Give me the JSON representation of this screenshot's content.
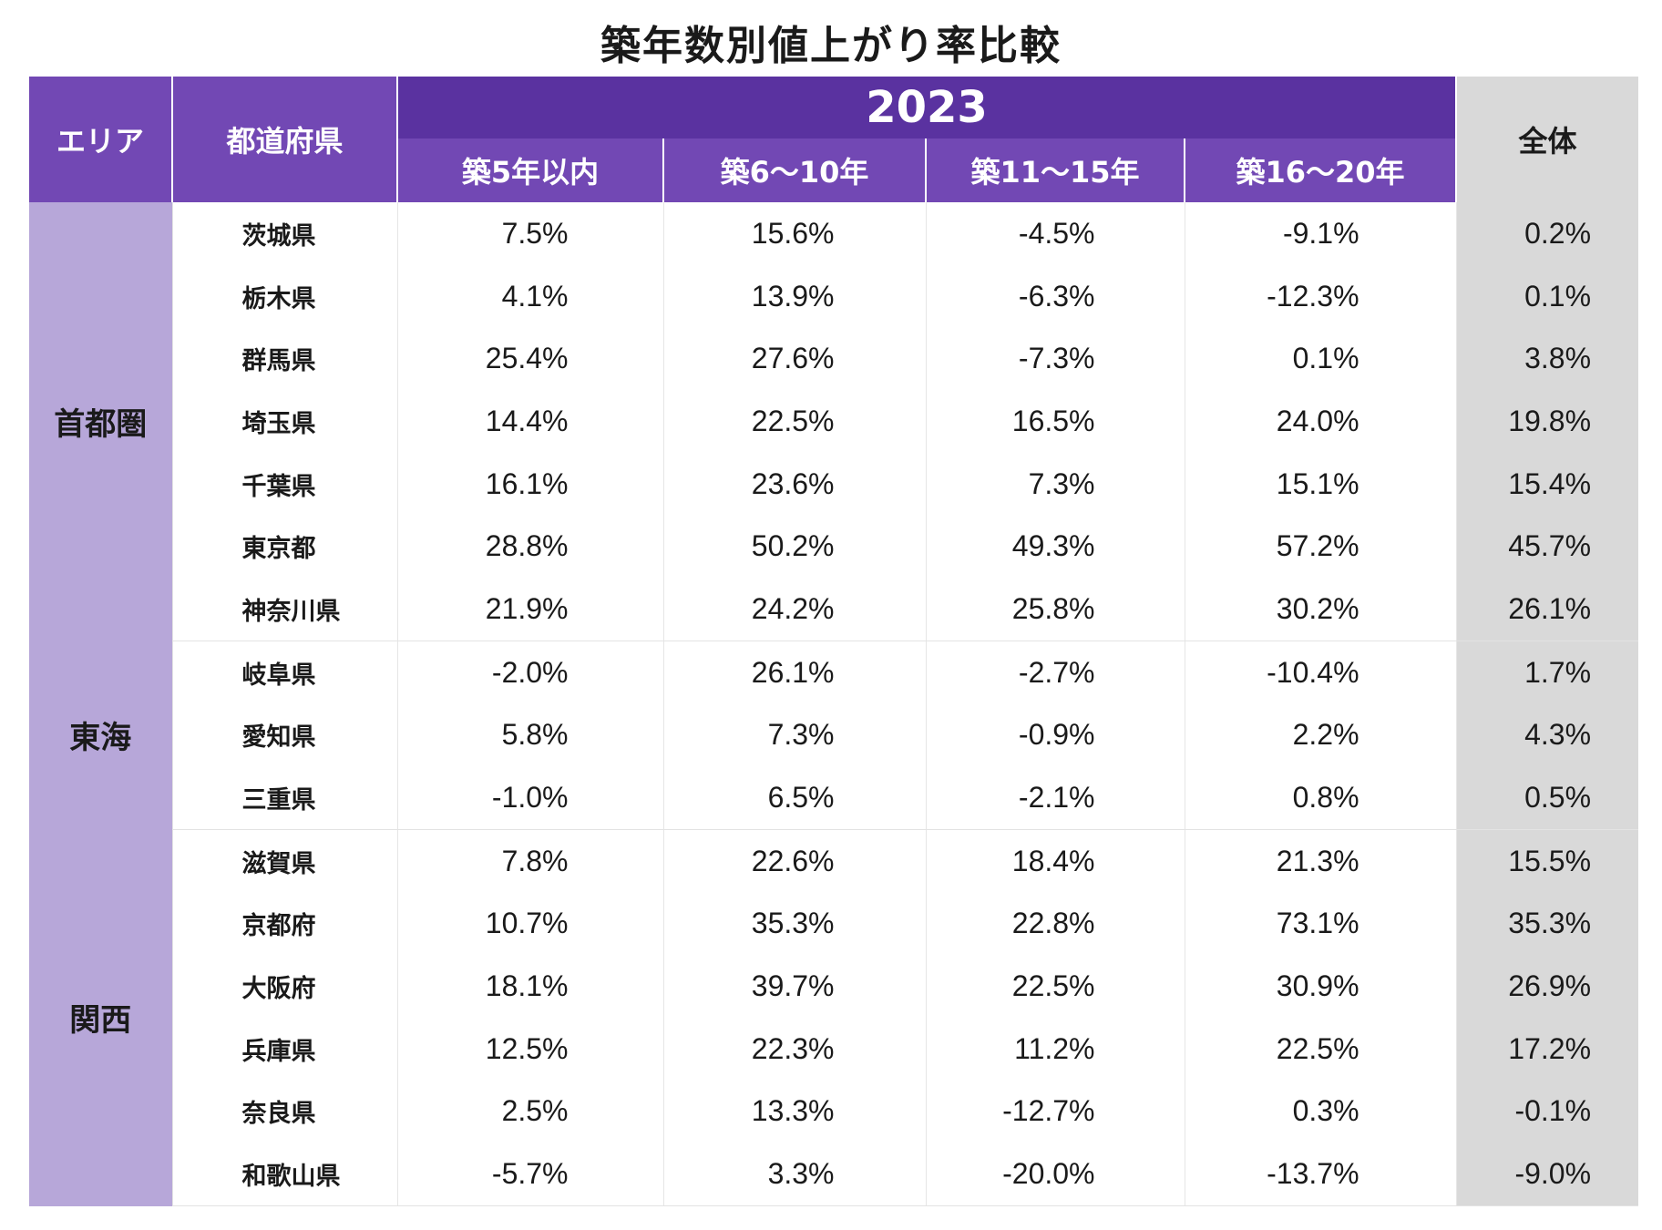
{
  "title": "築年数別値上がり率比較",
  "header": {
    "area": "エリア",
    "prefecture": "都道府県",
    "year": "2023",
    "age_bands": [
      "築5年以内",
      "築6〜10年",
      "築11〜15年",
      "築16〜20年"
    ],
    "total": "全体"
  },
  "groups": [
    {
      "area": "首都圏",
      "rows": [
        {
          "pref": "茨城県",
          "values": [
            "7.5%",
            "15.6%",
            "-4.5%",
            "-9.1%"
          ],
          "total": "0.2%"
        },
        {
          "pref": "栃木県",
          "values": [
            "4.1%",
            "13.9%",
            "-6.3%",
            "-12.3%"
          ],
          "total": "0.1%"
        },
        {
          "pref": "群馬県",
          "values": [
            "25.4%",
            "27.6%",
            "-7.3%",
            "0.1%"
          ],
          "total": "3.8%"
        },
        {
          "pref": "埼玉県",
          "values": [
            "14.4%",
            "22.5%",
            "16.5%",
            "24.0%"
          ],
          "total": "19.8%"
        },
        {
          "pref": "千葉県",
          "values": [
            "16.1%",
            "23.6%",
            "7.3%",
            "15.1%"
          ],
          "total": "15.4%"
        },
        {
          "pref": "東京都",
          "values": [
            "28.8%",
            "50.2%",
            "49.3%",
            "57.2%"
          ],
          "total": "45.7%"
        },
        {
          "pref": "神奈川県",
          "values": [
            "21.9%",
            "24.2%",
            "25.8%",
            "30.2%"
          ],
          "total": "26.1%"
        }
      ]
    },
    {
      "area": "東海",
      "rows": [
        {
          "pref": "岐阜県",
          "values": [
            "-2.0%",
            "26.1%",
            "-2.7%",
            "-10.4%"
          ],
          "total": "1.7%"
        },
        {
          "pref": "愛知県",
          "values": [
            "5.8%",
            "7.3%",
            "-0.9%",
            "2.2%"
          ],
          "total": "4.3%"
        },
        {
          "pref": "三重県",
          "values": [
            "-1.0%",
            "6.5%",
            "-2.1%",
            "0.8%"
          ],
          "total": "0.5%"
        }
      ]
    },
    {
      "area": "関西",
      "rows": [
        {
          "pref": "滋賀県",
          "values": [
            "7.8%",
            "22.6%",
            "18.4%",
            "21.3%"
          ],
          "total": "15.5%"
        },
        {
          "pref": "京都府",
          "values": [
            "10.7%",
            "35.3%",
            "22.8%",
            "73.1%"
          ],
          "total": "35.3%"
        },
        {
          "pref": "大阪府",
          "values": [
            "18.1%",
            "39.7%",
            "22.5%",
            "30.9%"
          ],
          "total": "26.9%"
        },
        {
          "pref": "兵庫県",
          "values": [
            "12.5%",
            "22.3%",
            "11.2%",
            "22.5%"
          ],
          "total": "17.2%"
        },
        {
          "pref": "奈良県",
          "values": [
            "2.5%",
            "13.3%",
            "-12.7%",
            "0.3%"
          ],
          "total": "-0.1%"
        },
        {
          "pref": "和歌山県",
          "values": [
            "-5.7%",
            "3.3%",
            "-20.0%",
            "-13.7%"
          ],
          "total": "-9.0%"
        }
      ]
    }
  ]
}
